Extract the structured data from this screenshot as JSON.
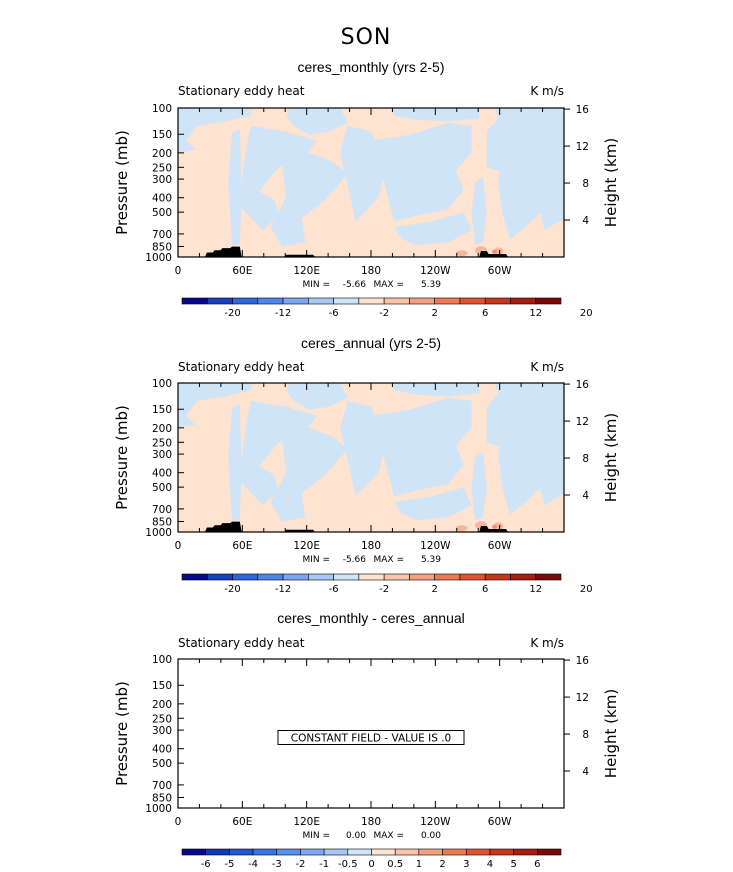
{
  "page": {
    "title": "SON"
  },
  "colors": {
    "neg": "#cfe4f6",
    "pos": "#fde3d0",
    "pos2": "#f5b79b",
    "pos3": "#ee9079",
    "topo": "#000000"
  },
  "chart_data": [
    {
      "type": "heatmap",
      "title": "ceres_monthly (yrs 2-5)",
      "left_string": "Stationary eddy heat",
      "right_string": "K m/s",
      "ylabel": "Pressure (mb)",
      "ylabel_right": "Height (km)",
      "x_ticks": [
        "0",
        "60E",
        "120E",
        "180",
        "120W",
        "60W"
      ],
      "x_tick_values": [
        0,
        60,
        120,
        180,
        240,
        300
      ],
      "xlim": [
        0,
        360
      ],
      "y_ticks": [
        100,
        150,
        200,
        250,
        300,
        400,
        500,
        700,
        850,
        1000
      ],
      "ylim": [
        1000,
        100
      ],
      "y_scale": "log",
      "height_ticks": [
        4,
        8,
        12,
        16
      ],
      "min_label": "MIN =",
      "min_value": "-5.66",
      "max_label": "MAX =",
      "max_value": "5.39",
      "colorbar_labels": [
        "-20",
        "-12",
        "-6",
        "-2",
        "2",
        "6",
        "12",
        "20"
      ],
      "colorbar_colors": [
        "#08088f",
        "#1642c2",
        "#2e66e0",
        "#4f86ec",
        "#7aa6f2",
        "#a8c8f6",
        "#cfe4f6",
        "#fde3d0",
        "#fac4a8",
        "#f5a07e",
        "#ee7a55",
        "#e0532e",
        "#c7351b",
        "#a61d10",
        "#7a0a05"
      ],
      "constant_text": "",
      "field": "nonzero"
    },
    {
      "type": "heatmap",
      "title": "ceres_annual (yrs 2-5)",
      "left_string": "Stationary eddy heat",
      "right_string": "K m/s",
      "ylabel": "Pressure (mb)",
      "ylabel_right": "Height (km)",
      "x_ticks": [
        "0",
        "60E",
        "120E",
        "180",
        "120W",
        "60W"
      ],
      "x_tick_values": [
        0,
        60,
        120,
        180,
        240,
        300
      ],
      "xlim": [
        0,
        360
      ],
      "y_ticks": [
        100,
        150,
        200,
        250,
        300,
        400,
        500,
        700,
        850,
        1000
      ],
      "ylim": [
        1000,
        100
      ],
      "y_scale": "log",
      "height_ticks": [
        4,
        8,
        12,
        16
      ],
      "min_label": "MIN =",
      "min_value": "-5.66",
      "max_label": "MAX =",
      "max_value": "5.39",
      "colorbar_labels": [
        "-20",
        "-12",
        "-6",
        "-2",
        "2",
        "6",
        "12",
        "20"
      ],
      "colorbar_colors": [
        "#08088f",
        "#1642c2",
        "#2e66e0",
        "#4f86ec",
        "#7aa6f2",
        "#a8c8f6",
        "#cfe4f6",
        "#fde3d0",
        "#fac4a8",
        "#f5a07e",
        "#ee7a55",
        "#e0532e",
        "#c7351b",
        "#a61d10",
        "#7a0a05"
      ],
      "constant_text": "",
      "field": "nonzero"
    },
    {
      "type": "heatmap",
      "title": "ceres_monthly - ceres_annual",
      "left_string": "Stationary eddy heat",
      "right_string": "K m/s",
      "ylabel": "Pressure (mb)",
      "ylabel_right": "Height (km)",
      "x_ticks": [
        "0",
        "60E",
        "120E",
        "180",
        "120W",
        "60W"
      ],
      "x_tick_values": [
        0,
        60,
        120,
        180,
        240,
        300
      ],
      "xlim": [
        0,
        360
      ],
      "y_ticks": [
        100,
        150,
        200,
        250,
        300,
        400,
        500,
        700,
        850,
        1000
      ],
      "ylim": [
        1000,
        100
      ],
      "y_scale": "log",
      "height_ticks": [
        4,
        8,
        12,
        16
      ],
      "min_label": "MIN =",
      "min_value": "0.00",
      "max_label": "MAX =",
      "max_value": "0.00",
      "colorbar_labels": [
        "-6",
        "-5",
        "-4",
        "-3",
        "-2",
        "-1",
        "-0.5",
        "0",
        "0.5",
        "1",
        "2",
        "3",
        "4",
        "5",
        "6"
      ],
      "colorbar_colors": [
        "#08088f",
        "#1237b5",
        "#2457d4",
        "#3a74e6",
        "#5a90ee",
        "#7faaf2",
        "#a6c6f5",
        "#cfe4f6",
        "#fde3d0",
        "#fac4a8",
        "#f5a07e",
        "#ee7a55",
        "#e0532e",
        "#c7351b",
        "#a61d10",
        "#7a0a05"
      ],
      "constant_text": "CONSTANT FIELD - VALUE IS .0",
      "field": "constant"
    }
  ]
}
